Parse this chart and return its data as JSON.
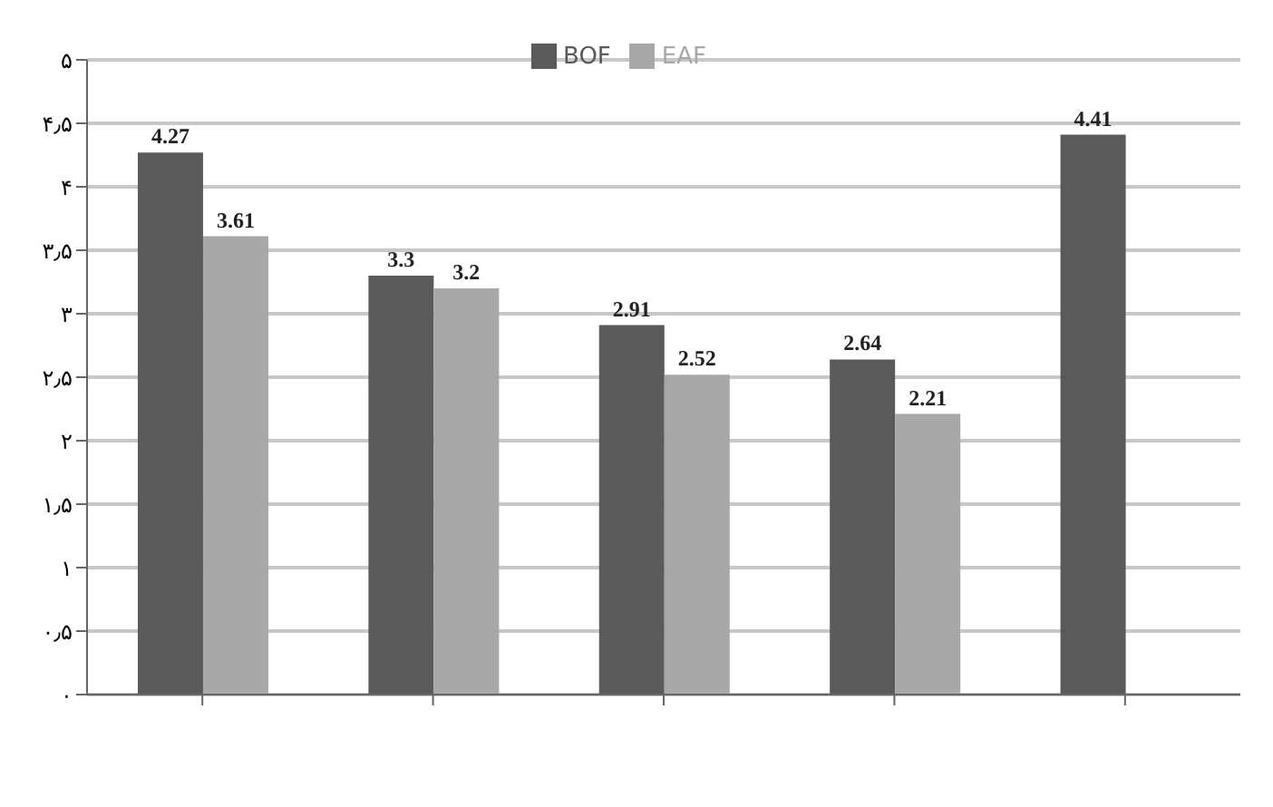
{
  "chart_data": {
    "type": "bar",
    "categories": [
      null,
      null,
      null,
      null,
      null
    ],
    "series": [
      {
        "name": "BOF",
        "color": "#5a5a5a",
        "values": [
          4.27,
          3.3,
          2.91,
          2.64,
          4.41
        ]
      },
      {
        "name": "EAF",
        "color": "#a8a8a8",
        "values": [
          3.61,
          3.2,
          2.52,
          2.21,
          null
        ]
      }
    ],
    "ylim": [
      0,
      5
    ],
    "yticks": [
      {
        "value": 0,
        "label": "۰"
      },
      {
        "value": 0.5,
        "label": "۰٫۵"
      },
      {
        "value": 1,
        "label": "۱"
      },
      {
        "value": 1.5,
        "label": "۱٫۵"
      },
      {
        "value": 2,
        "label": "۲"
      },
      {
        "value": 2.5,
        "label": "۲٫۵"
      },
      {
        "value": 3,
        "label": "۳"
      },
      {
        "value": 3.5,
        "label": "۳٫۵"
      },
      {
        "value": 4,
        "label": "۴"
      },
      {
        "value": 4.5,
        "label": "۴٫۵"
      },
      {
        "value": 5,
        "label": "۵"
      }
    ],
    "grid": "y",
    "legend": "top",
    "data_labels": true
  }
}
